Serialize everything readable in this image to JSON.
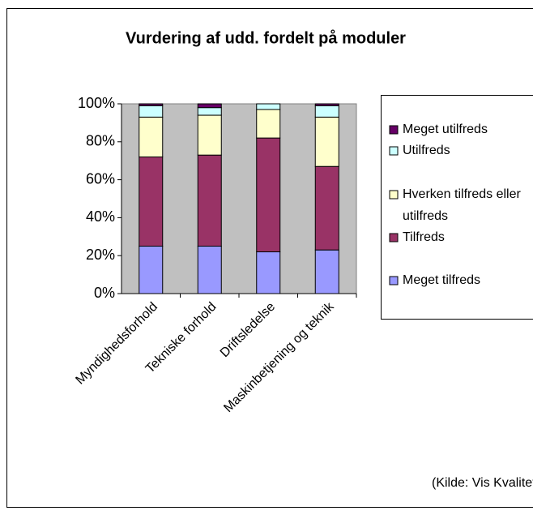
{
  "chart_data": {
    "type": "stacked_bar",
    "title": "Vurdering af udd. fordelt på moduler",
    "categories": [
      "Myndighedsforhold",
      "Tekniske forhold",
      "Driftsledelse",
      "Maskinbetjening og teknik"
    ],
    "series": [
      {
        "name": "Meget tilfreds",
        "color": "#9999ff",
        "values": [
          25,
          25,
          22,
          23
        ]
      },
      {
        "name": "Tilfreds",
        "color": "#993366",
        "values": [
          47,
          48,
          60,
          44
        ]
      },
      {
        "name": "Hverken tilfreds eller utilfreds",
        "color": "#ffffcc",
        "values": [
          21,
          21,
          15,
          26
        ]
      },
      {
        "name": "Utilfreds",
        "color": "#ccffff",
        "values": [
          6,
          4,
          3,
          6
        ]
      },
      {
        "name": "Meget utilfreds",
        "color": "#660066",
        "values": [
          1,
          2,
          0,
          1
        ]
      }
    ],
    "ylim": [
      0,
      100
    ],
    "yticks": [
      {
        "value": 0,
        "label": "0%"
      },
      {
        "value": 20,
        "label": "20%"
      },
      {
        "value": 40,
        "label": "40%"
      },
      {
        "value": 60,
        "label": "60%"
      },
      {
        "value": 80,
        "label": "80%"
      },
      {
        "value": 100,
        "label": "100%"
      }
    ],
    "grid": false,
    "legend": "right",
    "plot_background": "#c0c0c0",
    "source": "(Kilde: Vis Kvalitet)"
  }
}
